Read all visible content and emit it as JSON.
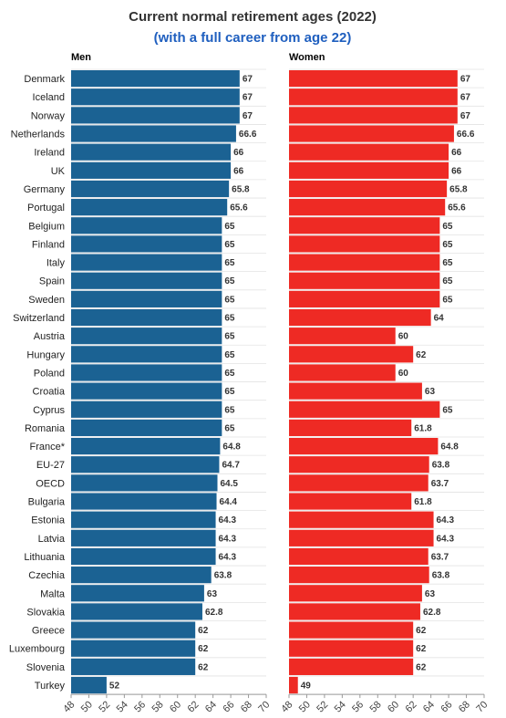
{
  "chart_data": {
    "type": "bar",
    "orientation": "horizontal",
    "title": "Current normal retirement ages (2022)",
    "subtitle": "(with a full career from age 22)",
    "xlim": [
      48,
      70
    ],
    "xticks": [
      48,
      50,
      52,
      54,
      56,
      58,
      60,
      62,
      64,
      66,
      68,
      70
    ],
    "grid": true,
    "categories": [
      "Denmark",
      "Iceland",
      "Norway",
      "Netherlands",
      "Ireland",
      "UK",
      "Germany",
      "Portugal",
      "Belgium",
      "Finland",
      "Italy",
      "Spain",
      "Sweden",
      "Switzerland",
      "Austria",
      "Hungary",
      "Poland",
      "Croatia",
      "Cyprus",
      "Romania",
      "France*",
      "EU-27",
      "OECD",
      "Bulgaria",
      "Estonia",
      "Latvia",
      "Lithuania",
      "Czechia",
      "Malta",
      "Slovakia",
      "Greece",
      "Luxembourg",
      "Slovenia",
      "Turkey"
    ],
    "series": [
      {
        "name": "Men",
        "color": "#1b6293",
        "values": [
          67,
          67,
          67,
          66.6,
          66,
          66,
          65.8,
          65.6,
          65,
          65,
          65,
          65,
          65,
          65,
          65,
          65,
          65,
          65,
          65,
          65,
          64.8,
          64.7,
          64.5,
          64.4,
          64.3,
          64.3,
          64.3,
          63.8,
          63,
          62.8,
          62,
          62,
          62,
          52
        ]
      },
      {
        "name": "Women",
        "color": "#ee2a24",
        "values": [
          67,
          67,
          67,
          66.6,
          66,
          66,
          65.8,
          65.6,
          65,
          65,
          65,
          65,
          65,
          64,
          60,
          62,
          60,
          63,
          65,
          61.8,
          64.8,
          63.8,
          63.7,
          61.8,
          64.3,
          64.3,
          63.7,
          63.8,
          63,
          62.8,
          62,
          62,
          62,
          49
        ]
      }
    ],
    "colors": {
      "title": "#333333",
      "subtitle": "#1f5fbf",
      "men": "#1b6293",
      "women": "#ee2a24"
    }
  }
}
